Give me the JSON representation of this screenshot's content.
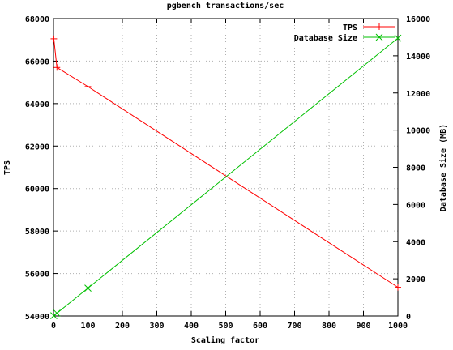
{
  "chart_data": {
    "type": "line",
    "title": "pgbench transactions/sec",
    "xlabel": "Scaling factor",
    "ylabel": "TPS",
    "y2label": "Database Size (MB)",
    "xlim": [
      0,
      1000
    ],
    "ylim": [
      54000,
      68000
    ],
    "y2lim": [
      0,
      16000
    ],
    "xticks": [
      0,
      100,
      200,
      300,
      400,
      500,
      600,
      700,
      800,
      900,
      1000
    ],
    "yticks": [
      54000,
      56000,
      58000,
      60000,
      62000,
      64000,
      66000,
      68000
    ],
    "y2ticks": [
      0,
      2000,
      4000,
      6000,
      8000,
      10000,
      12000,
      14000,
      16000
    ],
    "grid": true,
    "legend_position": "top-right",
    "series": [
      {
        "name": "TPS",
        "axis": "left",
        "color": "#ff0000",
        "marker": "plus",
        "x": [
          1,
          10,
          100,
          1000
        ],
        "y": [
          67050,
          65700,
          64800,
          55350
        ]
      },
      {
        "name": "Database Size",
        "axis": "right",
        "color": "#00c000",
        "marker": "cross",
        "x": [
          1,
          10,
          100,
          1000
        ],
        "y": [
          16,
          150,
          1500,
          14950
        ]
      }
    ]
  }
}
